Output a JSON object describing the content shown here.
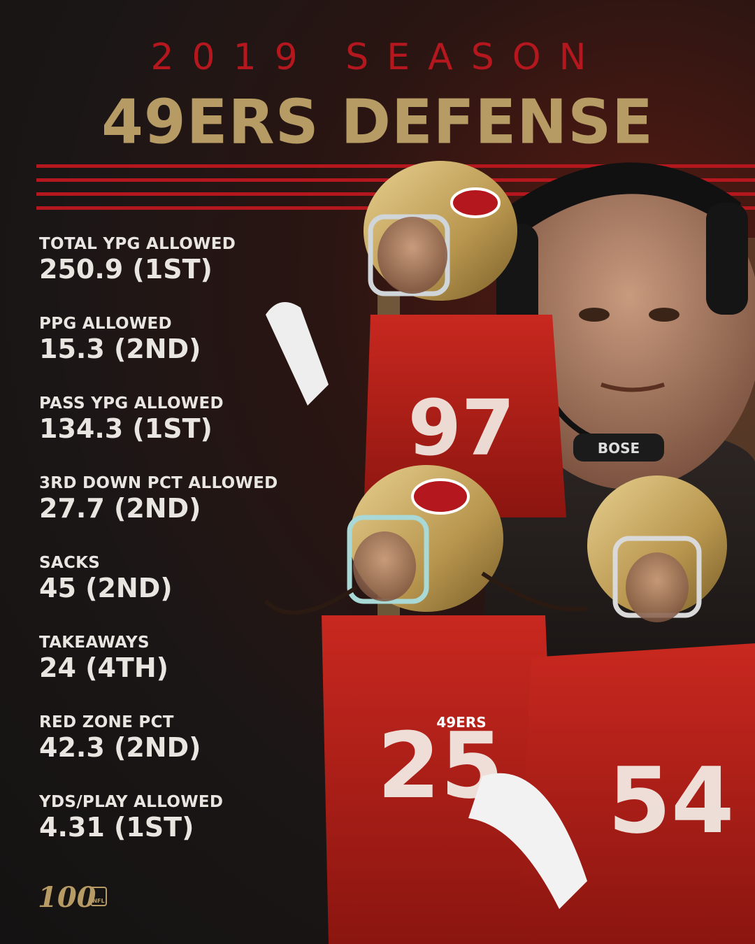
{
  "header": {
    "season_label": "2019 SEASON",
    "title": "49ERS DEFENSE"
  },
  "stats": [
    {
      "label": "TOTAL YPG ALLOWED",
      "value": "250.9 (1ST)"
    },
    {
      "label": "PPG ALLOWED",
      "value": "15.3 (2ND)"
    },
    {
      "label": "PASS YPG ALLOWED",
      "value": "134.3 (1ST)"
    },
    {
      "label": "3RD DOWN PCT ALLOWED",
      "value": "27.7 (2ND)"
    },
    {
      "label": "SACKS",
      "value": "45 (2ND)"
    },
    {
      "label": "TAKEAWAYS",
      "value": "24 (4TH)"
    },
    {
      "label": "RED ZONE PCT",
      "value": "42.3 (2ND)"
    },
    {
      "label": "YDS/PLAY ALLOWED",
      "value": "4.31 (1ST)"
    }
  ],
  "photo": {
    "headset_brand": "BOSE",
    "jersey_numbers": [
      "97",
      "25",
      "54"
    ],
    "jersey_wordmark": "49ERS"
  },
  "footer": {
    "logo_text": "100",
    "logo_sub": "NFL"
  },
  "colors": {
    "red": "#b4171d",
    "gold": "#b79b64",
    "text": "#e9e6e2",
    "background": "#1b1616"
  }
}
